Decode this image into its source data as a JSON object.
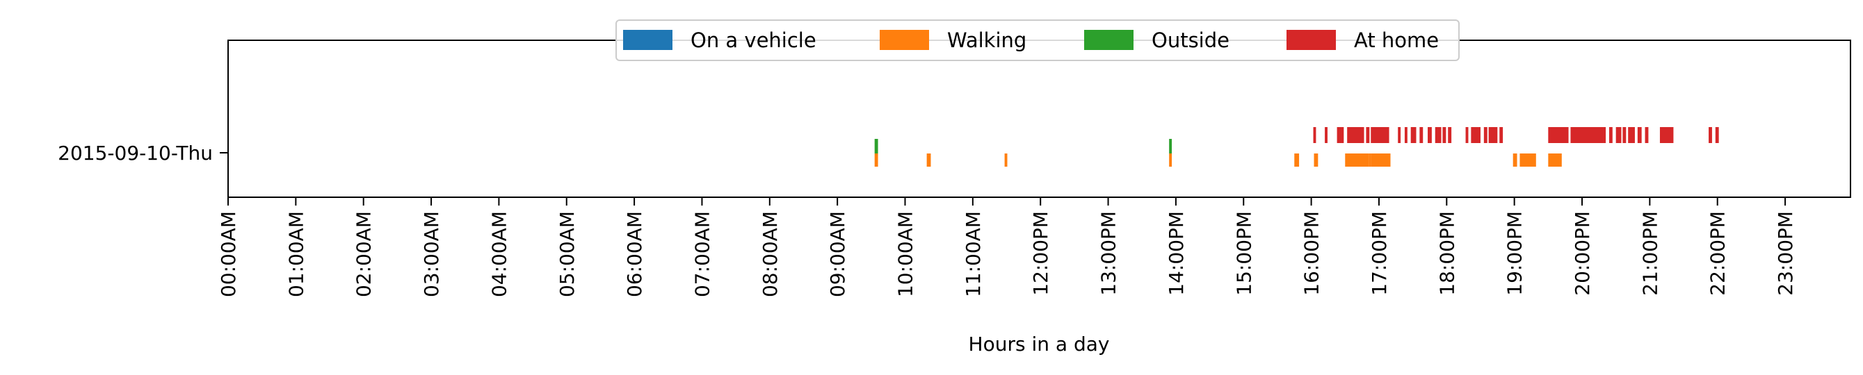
{
  "chart_data": {
    "type": "timeline",
    "xlabel": "Hours in a day",
    "ylabel": "",
    "xlim": [
      0,
      24
    ],
    "row_labels": [
      "2015-09-10-Thu"
    ],
    "x_tick_labels": [
      "00:00AM",
      "01:00AM",
      "02:00AM",
      "03:00AM",
      "04:00AM",
      "05:00AM",
      "06:00AM",
      "07:00AM",
      "08:00AM",
      "09:00AM",
      "10:00AM",
      "11:00AM",
      "12:00PM",
      "13:00PM",
      "14:00PM",
      "15:00PM",
      "16:00PM",
      "17:00PM",
      "18:00PM",
      "19:00PM",
      "20:00PM",
      "21:00PM",
      "22:00PM",
      "23:00PM"
    ],
    "legend": {
      "placement": "top-center"
    },
    "series": [
      {
        "name": "On a vehicle",
        "color": "#1f77b4",
        "intervals": []
      },
      {
        "name": "Walking",
        "color": "#ff7f0e",
        "intervals": [
          [
            9.55,
            9.6
          ],
          [
            10.32,
            10.38
          ],
          [
            11.47,
            11.51
          ],
          [
            13.9,
            13.94
          ],
          [
            15.75,
            15.82
          ],
          [
            16.04,
            16.1
          ],
          [
            16.5,
            16.85
          ],
          [
            16.85,
            16.88
          ],
          [
            16.88,
            17.17
          ],
          [
            18.98,
            19.04
          ],
          [
            19.08,
            19.32
          ],
          [
            19.5,
            19.7
          ]
        ]
      },
      {
        "name": "Outside",
        "color": "#2ca02c",
        "intervals": [
          [
            9.55,
            9.6
          ],
          [
            13.9,
            13.94
          ]
        ]
      },
      {
        "name": "At home",
        "color": "#d62728",
        "intervals": [
          [
            16.03,
            16.07
          ],
          [
            16.2,
            16.24
          ],
          [
            16.38,
            16.48
          ],
          [
            16.53,
            16.78
          ],
          [
            16.81,
            16.86
          ],
          [
            16.88,
            17.15
          ],
          [
            17.28,
            17.32
          ],
          [
            17.38,
            17.42
          ],
          [
            17.47,
            17.55
          ],
          [
            17.6,
            17.65
          ],
          [
            17.72,
            17.78
          ],
          [
            17.83,
            17.92
          ],
          [
            17.94,
            17.99
          ],
          [
            18.02,
            18.07
          ],
          [
            18.28,
            18.32
          ],
          [
            18.36,
            18.5
          ],
          [
            18.55,
            18.6
          ],
          [
            18.62,
            18.75
          ],
          [
            18.78,
            18.83
          ],
          [
            19.5,
            19.8
          ],
          [
            19.83,
            20.35
          ],
          [
            20.4,
            20.45
          ],
          [
            20.5,
            20.58
          ],
          [
            20.6,
            20.65
          ],
          [
            20.68,
            20.78
          ],
          [
            20.82,
            20.88
          ],
          [
            20.93,
            20.98
          ],
          [
            21.15,
            21.35
          ],
          [
            21.87,
            21.92
          ],
          [
            21.97,
            22.02
          ]
        ]
      }
    ],
    "grid": false
  }
}
